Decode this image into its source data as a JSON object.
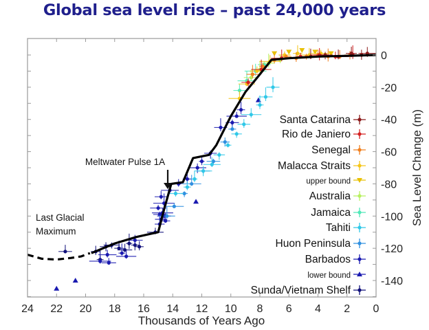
{
  "title": "Global sea level rise – past 24,000 years",
  "chart_data": {
    "type": "scatter",
    "title": "Global sea level rise – past 24,000 years",
    "xlabel": "Thousands of Years Ago",
    "ylabel": "Sea Level Change (m)",
    "xlim": [
      24,
      0
    ],
    "ylim": [
      -150,
      10
    ],
    "x_reversed": true,
    "y_axis_side": "right",
    "x_ticks": [
      24,
      22,
      20,
      18,
      16,
      14,
      12,
      10,
      8,
      6,
      4,
      2,
      0
    ],
    "y_ticks": [
      0,
      -20,
      -40,
      -60,
      -80,
      -100,
      -120,
      -140
    ],
    "grid": false,
    "legend_placement": "right",
    "legend": [
      {
        "label": "Santa Catarina",
        "color": "#8b1a1a",
        "marker": "cross",
        "size": "large"
      },
      {
        "label": "Rio de Janiero",
        "color": "#d42020",
        "marker": "cross",
        "size": "large"
      },
      {
        "label": "Senegal",
        "color": "#f08020",
        "marker": "cross",
        "size": "large"
      },
      {
        "label": "Malacca Straits",
        "color": "#f5c518",
        "marker": "cross",
        "size": "large"
      },
      {
        "label": "upper bound",
        "color": "#e8c000",
        "marker": "triangle-down",
        "size": "small"
      },
      {
        "label": "Australia",
        "color": "#b8f060",
        "marker": "cross",
        "size": "large"
      },
      {
        "label": "Jamaica",
        "color": "#50e8b8",
        "marker": "cross",
        "size": "large"
      },
      {
        "label": "Tahiti",
        "color": "#30c8e8",
        "marker": "cross",
        "size": "large"
      },
      {
        "label": "Huon Peninsula",
        "color": "#3090e0",
        "marker": "cross",
        "size": "large"
      },
      {
        "label": "Barbados",
        "color": "#1a1ab0",
        "marker": "cross",
        "size": "large"
      },
      {
        "label": "lower bound",
        "color": "#1a1ab0",
        "marker": "triangle-up",
        "size": "small"
      },
      {
        "label": "Sunda/Vietnam Shelf",
        "color": "#10107a",
        "marker": "cross",
        "size": "large"
      }
    ],
    "annotations": [
      {
        "text": "Meltwater Pulse 1A",
        "x": 14.5,
        "y": -83,
        "arrow": true
      },
      {
        "text_lines": [
          "Last Glacial",
          "Maximum"
        ],
        "x": 22.5,
        "y": -108
      }
    ],
    "series": [
      {
        "name": "Sea level curve (inferred)",
        "style": "dashed",
        "color": "#000000",
        "x": [
          24,
          23,
          22,
          21,
          20.3,
          19.7
        ],
        "y": [
          -124,
          -126.5,
          -127,
          -126,
          -125,
          -123
        ]
      },
      {
        "name": "Sea level curve",
        "style": "solid",
        "color": "#000000",
        "x": [
          19.6,
          18,
          16.5,
          15.0,
          14.6,
          14.1,
          13.3,
          12.6,
          11.5,
          11.0,
          10.0,
          9.0,
          8.0,
          7.2,
          6.0,
          4.0,
          2.0,
          0
        ],
        "y": [
          -123,
          -117,
          -113,
          -110,
          -96,
          -80,
          -79,
          -64,
          -62,
          -56,
          -38,
          -23,
          -12,
          -3,
          -2,
          -1,
          -0.5,
          0
        ]
      },
      {
        "name": "Sunda/Vietnam Shelf",
        "color": "#10107a",
        "x": [
          21.4,
          19.3,
          19.0,
          18.6,
          18.2,
          17.7,
          17.3,
          17.0,
          16.6,
          16.3,
          15.2
        ],
        "y": [
          -122,
          -122,
          -127,
          -119,
          -118,
          -120,
          -121,
          -117,
          -118,
          -119,
          -110
        ]
      },
      {
        "name": "Barbados",
        "color": "#1a1ab0",
        "x": [
          19.0,
          18.4,
          18.5,
          17.5,
          17.2,
          16.6,
          15.0,
          14.9,
          14.8,
          14.7,
          14.6,
          14.8,
          14.5,
          14.9,
          14.6,
          14.2,
          13.6,
          13.0,
          12.3,
          12.0,
          11.4,
          10.7,
          9.9,
          9.6,
          9.3
        ],
        "y": [
          -128,
          -129,
          -124,
          -123,
          -125,
          -115,
          -95,
          -99,
          -102,
          -98,
          -100,
          -88,
          -103,
          -105,
          -92,
          -84,
          -80,
          -77,
          -70,
          -66,
          -61,
          -45,
          -42,
          -38,
          -34
        ]
      },
      {
        "name": "lower bound",
        "color": "#1a1ab0",
        "x": [
          22.0,
          20.7,
          12.4,
          8.1
        ],
        "y": [
          -145,
          -140,
          -91,
          -28
        ]
      },
      {
        "name": "Huon Peninsula",
        "color": "#3090e0",
        "x": [
          14.4,
          13.9,
          13.2,
          12.7,
          11.9,
          11.2,
          10.4,
          9.9
        ],
        "y": [
          -100,
          -94,
          -86,
          -80,
          -72,
          -66,
          -54,
          -46
        ]
      },
      {
        "name": "Tahiti",
        "color": "#30c8e8",
        "x": [
          13.8,
          13.0,
          12.5,
          11.9,
          11.3,
          10.8,
          10.2,
          9.6,
          9.1,
          8.6,
          8.0,
          7.6,
          7.1
        ],
        "y": [
          -86,
          -82,
          -77,
          -72,
          -68,
          -62,
          -56,
          -49,
          -43,
          -37,
          -31,
          -26,
          -20
        ]
      },
      {
        "name": "Jamaica",
        "color": "#50e8b8",
        "x": [
          9.4,
          8.9,
          8.3,
          7.7
        ],
        "y": [
          -22,
          -16,
          -10,
          -6
        ]
      },
      {
        "name": "Australia",
        "color": "#b8f060",
        "x": [
          8.6,
          8.0,
          7.4,
          6.6
        ],
        "y": [
          -14,
          -9,
          -5,
          -3
        ]
      },
      {
        "name": "Malacca Straits",
        "color": "#f5c518",
        "x": [
          9.4,
          8.9,
          8.2,
          7.3,
          6.3,
          5.4,
          4.6,
          3.8
        ],
        "y": [
          -27,
          -18,
          -10,
          -4,
          0,
          1,
          0,
          1
        ]
      },
      {
        "name": "upper bound",
        "color": "#e8c000",
        "x": [
          7.0,
          6.0,
          5.1,
          4.2,
          3.1
        ],
        "y": [
          1,
          2,
          3,
          2,
          1
        ]
      },
      {
        "name": "Senegal",
        "color": "#f08020",
        "x": [
          8.5,
          7.8,
          7.0,
          6.2,
          5.5,
          4.8,
          4.0,
          3.3,
          2.5,
          1.8
        ],
        "y": [
          -12,
          -7,
          -3,
          -1,
          -2,
          -1,
          0,
          -1,
          -1,
          0
        ]
      },
      {
        "name": "Rio de Janiero",
        "color": "#d42020",
        "x": [
          8.8,
          7.9,
          6.5,
          5.2,
          3.9,
          2.8,
          1.6
        ],
        "y": [
          -17,
          -9,
          -2,
          -1,
          0,
          -1,
          0
        ]
      },
      {
        "name": "Santa Catarina",
        "color": "#8b1a1a",
        "x": [
          4.5,
          3.5,
          2.6,
          1.7,
          1.0,
          0.6
        ],
        "y": [
          -1,
          0,
          -1,
          1,
          0,
          1
        ]
      }
    ]
  }
}
